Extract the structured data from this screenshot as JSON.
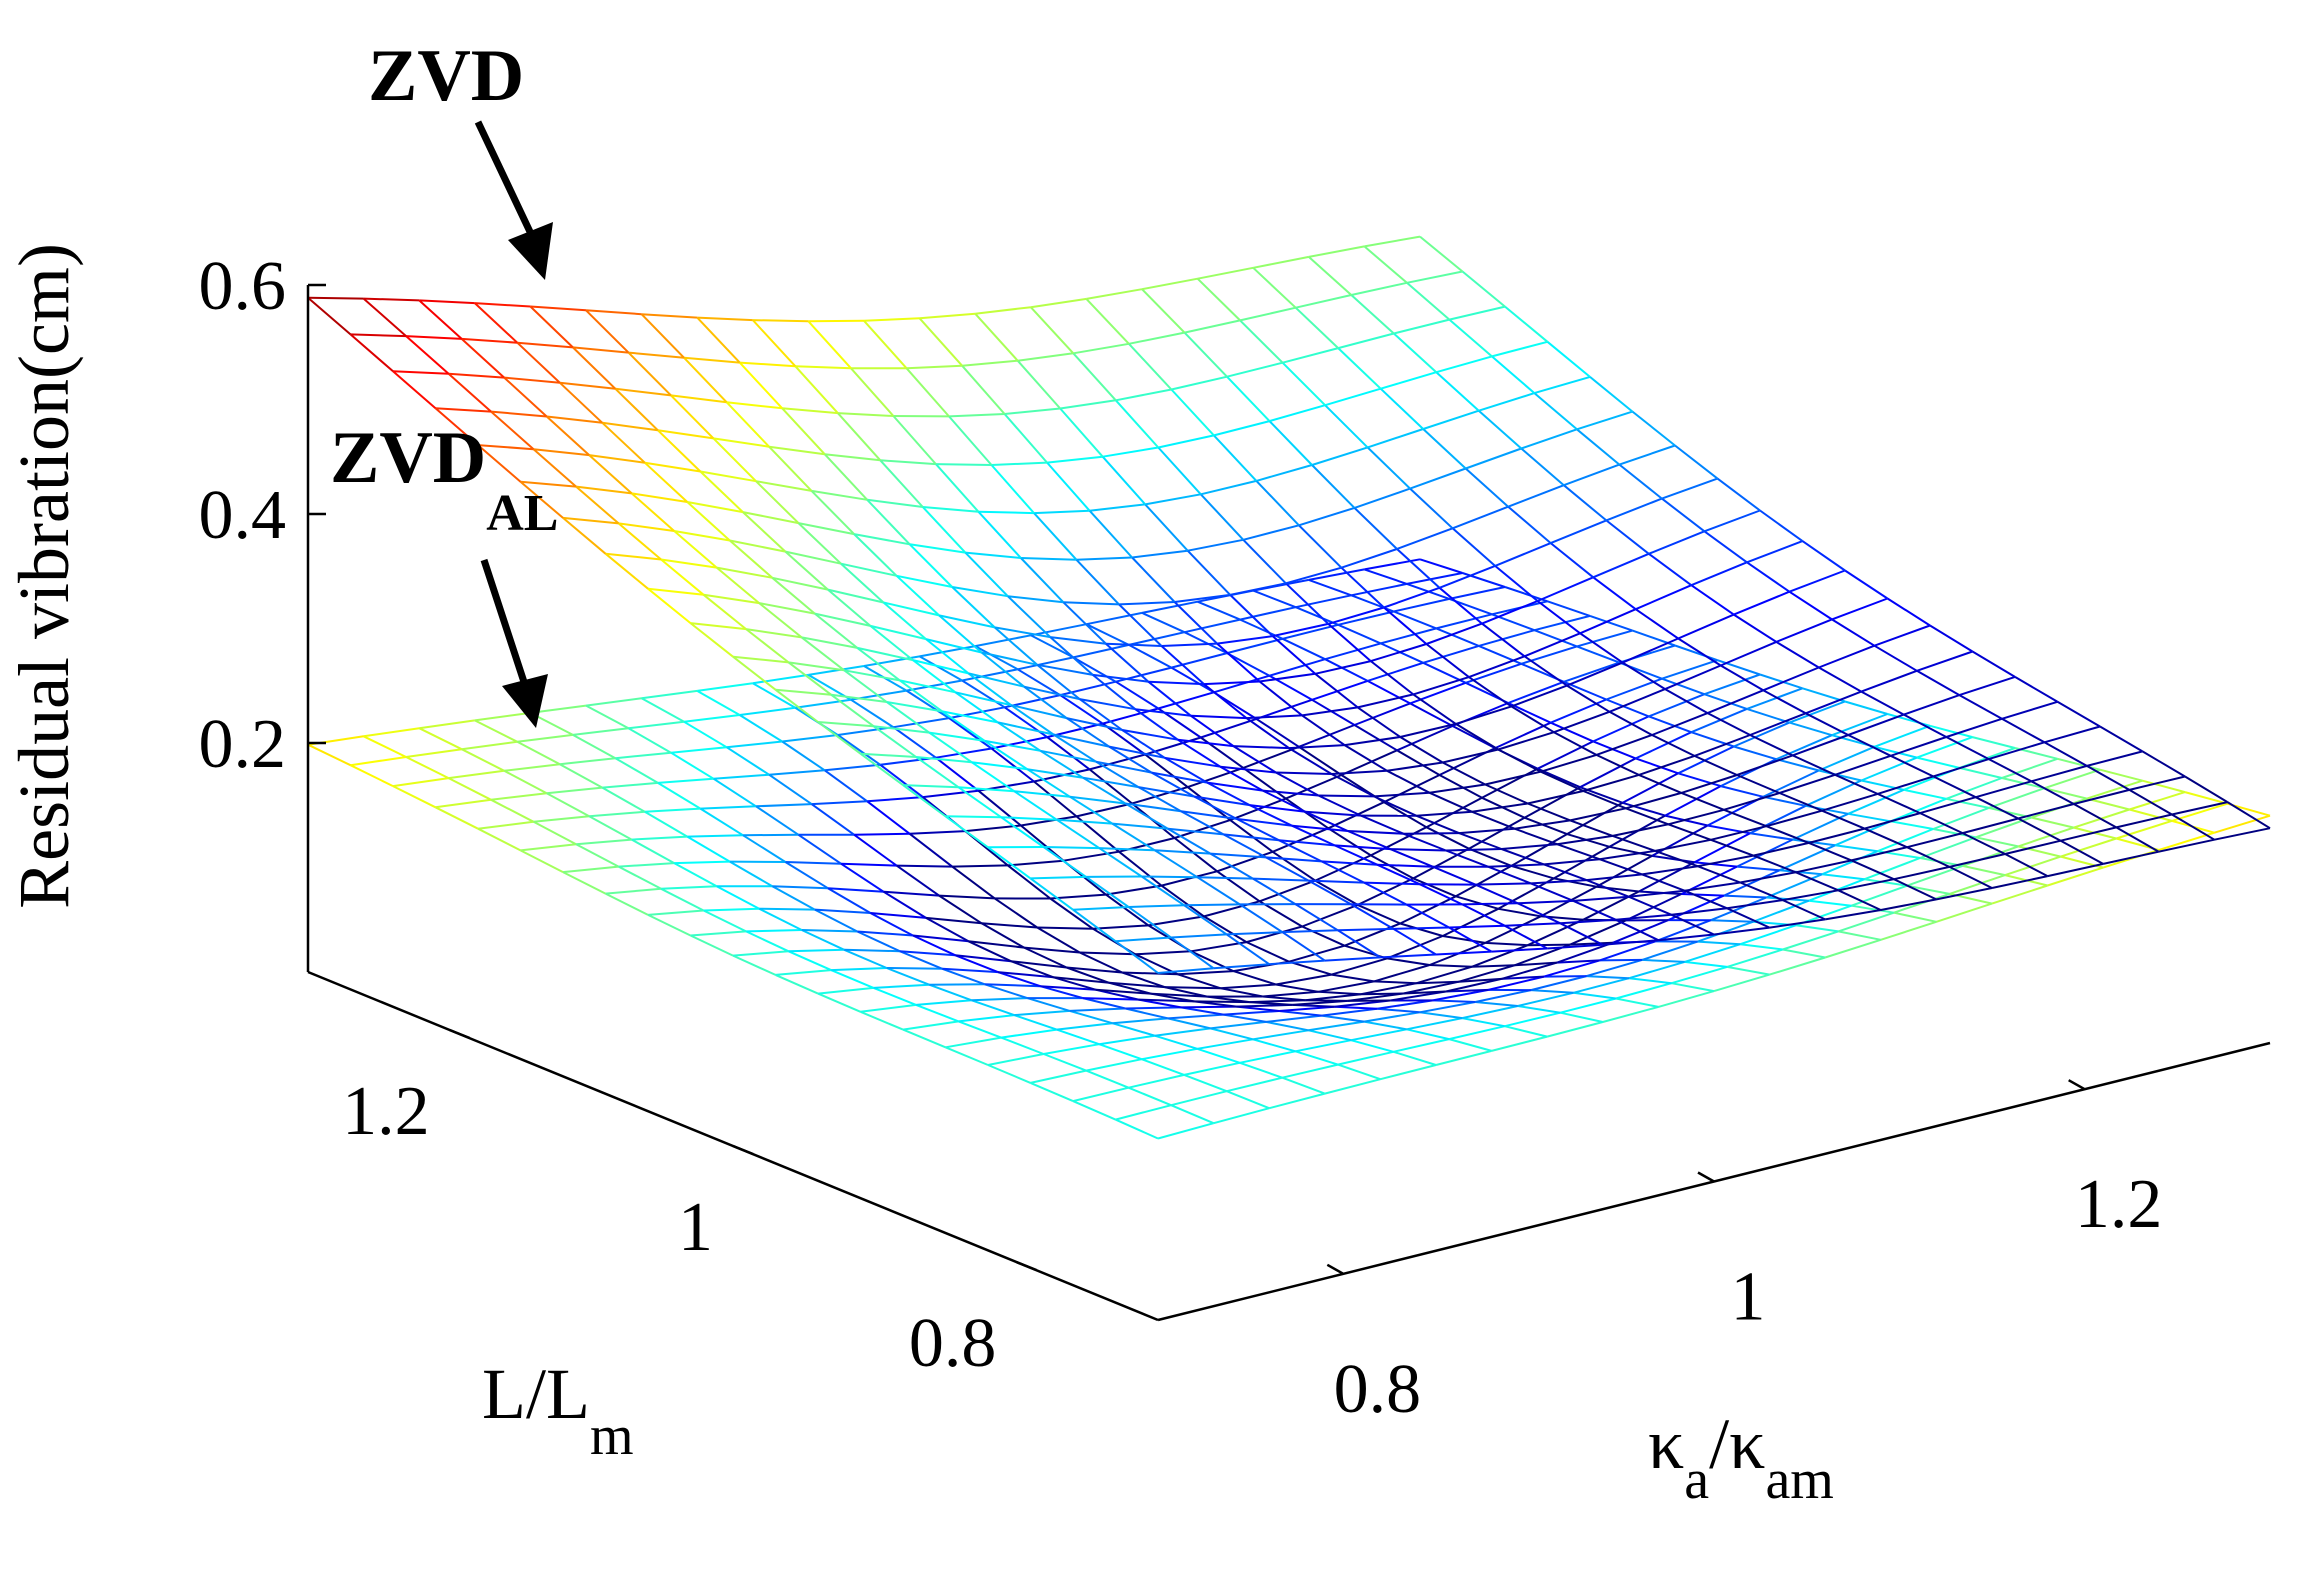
{
  "chart_data": {
    "type": "surface-mesh",
    "title": "",
    "zlabel": "Residual vibration(cm)",
    "xlabel": {
      "base": "κ",
      "sub": "a",
      "sep": "/",
      "base2": "κ",
      "sub2": "am"
    },
    "ylabel": {
      "base": "L/L",
      "sub": "m"
    },
    "xlim": [
      0.7,
      1.3
    ],
    "ylim": [
      0.7,
      1.3
    ],
    "zlim": [
      0,
      0.6
    ],
    "x_ticks": [
      {
        "value": 0.8,
        "label": "0.8"
      },
      {
        "value": 1.0,
        "label": "1"
      },
      {
        "value": 1.2,
        "label": "1.2"
      }
    ],
    "y_ticks": [
      {
        "value": 0.8,
        "label": "0.8"
      },
      {
        "value": 1.0,
        "label": "1"
      },
      {
        "value": 1.2,
        "label": "1.2"
      }
    ],
    "z_ticks": [
      {
        "value": 0.2,
        "label": "0.2"
      },
      {
        "value": 0.4,
        "label": "0.4"
      },
      {
        "value": 0.6,
        "label": "0.6"
      }
    ],
    "grid_points": 21,
    "series": [
      {
        "name": "ZVD",
        "label_main": "ZVD",
        "label_sub": "",
        "corners": {
          "back_left": 0.6,
          "back_right": 0.42,
          "front_left": 0.31,
          "front_right": 0.2
        },
        "valley": {
          "depth": 0.16,
          "center_x": 1.03,
          "center_y": 1.03,
          "width_x": 0.25,
          "width_y": 0.28
        },
        "color_range": [
          0.2,
          0.6
        ]
      },
      {
        "name": "ZVD_AL",
        "label_main": "ZVD",
        "label_sub": "AL",
        "corners": {
          "back_left": 0.2,
          "back_right": 0.12,
          "front_left": 0.16,
          "front_right": 0.2
        },
        "valley": {
          "depth": 0.13,
          "center_x": 1.0,
          "center_y": 1.0,
          "width_x": 0.2,
          "width_y": 0.2
        },
        "color_range": [
          0.1,
          0.25
        ]
      }
    ],
    "colormap": "jet"
  }
}
